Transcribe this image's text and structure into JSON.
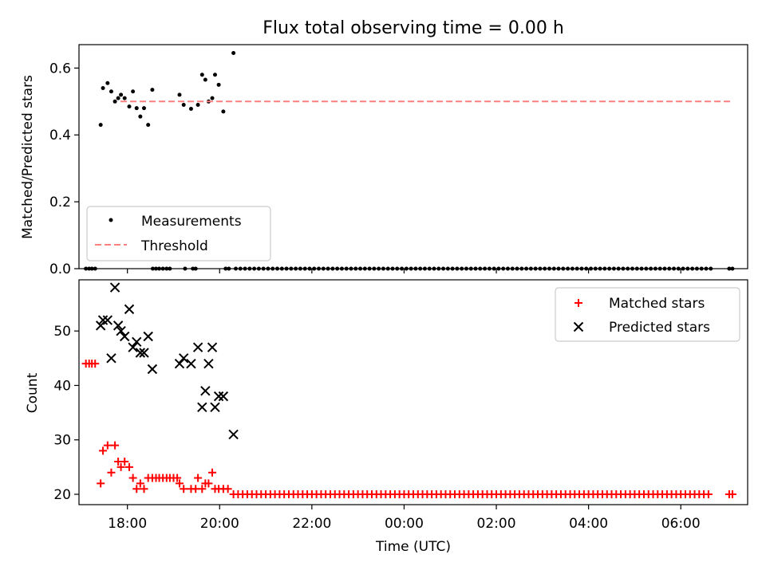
{
  "figure": {
    "title": "Flux total observing time = 0.00 h"
  },
  "chart_data": [
    {
      "type": "scatter",
      "ylabel": "Matched/Predicted stars",
      "xlabel": "",
      "xlim": [
        16.95,
        31.45
      ],
      "ylim": [
        0,
        0.67
      ],
      "yticks": [
        0.0,
        0.2,
        0.4,
        0.6
      ],
      "ytick_labels": [
        "0.0",
        "0.2",
        "0.4",
        "0.6"
      ],
      "xticks": [
        18,
        20,
        22,
        24,
        26,
        28,
        30
      ],
      "grid": false,
      "legend": {
        "placement": "lower-left",
        "entries": [
          "Measurements",
          "Threshold"
        ]
      },
      "series": [
        {
          "name": "Measurements",
          "marker": "dot",
          "color": "#000000",
          "x": [
            17.42,
            17.47,
            17.57,
            17.65,
            17.73,
            17.8,
            17.86,
            17.94,
            18.04,
            18.12,
            18.2,
            18.28,
            18.36,
            18.45,
            18.54,
            19.13,
            19.22,
            19.38,
            19.53,
            19.62,
            19.69,
            19.76,
            19.84,
            19.9,
            19.98,
            20.08,
            20.3
          ],
          "y": [
            0.43,
            0.54,
            0.555,
            0.53,
            0.5,
            0.51,
            0.52,
            0.51,
            0.485,
            0.53,
            0.48,
            0.455,
            0.48,
            0.43,
            0.535,
            0.52,
            0.49,
            0.478,
            0.49,
            0.58,
            0.565,
            0.5,
            0.51,
            0.58,
            0.55,
            0.47,
            0.645
          ]
        },
        {
          "name": "Threshold",
          "style": "dashed",
          "color": "#ff7f7f",
          "x": [
            17.85,
            31.1
          ],
          "y": [
            0.5,
            0.5
          ]
        },
        {
          "name": "zero-ratio-points",
          "marker": "dot",
          "color": "#000000",
          "x": [
            17.1,
            17.17,
            17.23,
            17.3,
            18.55,
            18.62,
            18.69,
            18.77,
            18.85,
            18.92,
            19.25,
            19.42,
            19.48,
            20.13,
            20.2
          ],
          "y": [
            0,
            0,
            0,
            0,
            0,
            0,
            0,
            0,
            0,
            0,
            0,
            0,
            0,
            0,
            0
          ]
        },
        {
          "name": "zero-ratio-range",
          "marker": "dot",
          "color": "#000000",
          "x_range": [
            20.35,
            30.65,
            0.1
          ],
          "y": 0
        },
        {
          "name": "zero-ratio-tail",
          "marker": "dot",
          "color": "#000000",
          "x": [
            31.05,
            31.12
          ],
          "y": [
            0,
            0
          ]
        }
      ]
    },
    {
      "type": "scatter",
      "ylabel": "Count",
      "xlabel": "Time (UTC)",
      "xlim": [
        16.95,
        31.45
      ],
      "ylim": [
        18.1,
        59.4
      ],
      "yticks": [
        20,
        30,
        40,
        50
      ],
      "ytick_labels": [
        "20",
        "30",
        "40",
        "50"
      ],
      "xticks": [
        18,
        20,
        22,
        24,
        26,
        28,
        30
      ],
      "xtick_labels": [
        "18:00",
        "20:00",
        "22:00",
        "00:00",
        "02:00",
        "04:00",
        "06:00"
      ],
      "grid": false,
      "legend": {
        "placement": "top-right",
        "entries": [
          "Matched stars",
          "Predicted stars"
        ]
      },
      "series": [
        {
          "name": "Matched stars",
          "marker": "plus",
          "color": "#ff0000",
          "x": [
            17.1,
            17.17,
            17.23,
            17.3,
            17.42,
            17.47,
            17.57,
            17.65,
            17.73,
            17.8,
            17.86,
            17.94,
            18.04,
            18.12,
            18.2,
            18.28,
            18.36,
            18.45,
            18.54,
            18.62,
            18.69,
            18.77,
            18.85,
            18.92,
            19.0,
            19.08,
            19.13,
            19.22,
            19.38,
            19.48,
            19.53,
            19.62,
            19.69,
            19.76,
            19.84,
            19.9,
            19.98,
            20.08,
            20.18,
            20.3
          ],
          "y": [
            44,
            44,
            44,
            44,
            22,
            28,
            29,
            24,
            29,
            26,
            25,
            26,
            25,
            23,
            21,
            22,
            21,
            23,
            23,
            23,
            23,
            23,
            23,
            23,
            23,
            23,
            22,
            21,
            21,
            21,
            23,
            21,
            22,
            22,
            24,
            21,
            21,
            21,
            21,
            20
          ],
          "x_range": [
            20.4,
            30.65,
            0.1
          ],
          "y_range_value": 20,
          "x_tail": [
            31.05,
            31.12
          ],
          "y_tail": [
            20,
            20
          ]
        },
        {
          "name": "Predicted stars",
          "marker": "x",
          "color": "#000000",
          "x": [
            17.42,
            17.47,
            17.57,
            17.65,
            17.73,
            17.8,
            17.86,
            17.94,
            18.04,
            18.12,
            18.2,
            18.28,
            18.36,
            18.45,
            18.54,
            19.13,
            19.22,
            19.38,
            19.53,
            19.62,
            19.69,
            19.76,
            19.84,
            19.9,
            19.98,
            20.08,
            20.3
          ],
          "y": [
            51,
            52,
            52,
            45,
            58,
            51,
            50,
            49,
            54,
            47,
            48,
            46,
            46,
            49,
            43,
            44,
            45,
            44,
            47,
            36,
            39,
            44,
            47,
            36,
            38,
            38,
            31
          ]
        }
      ]
    }
  ]
}
